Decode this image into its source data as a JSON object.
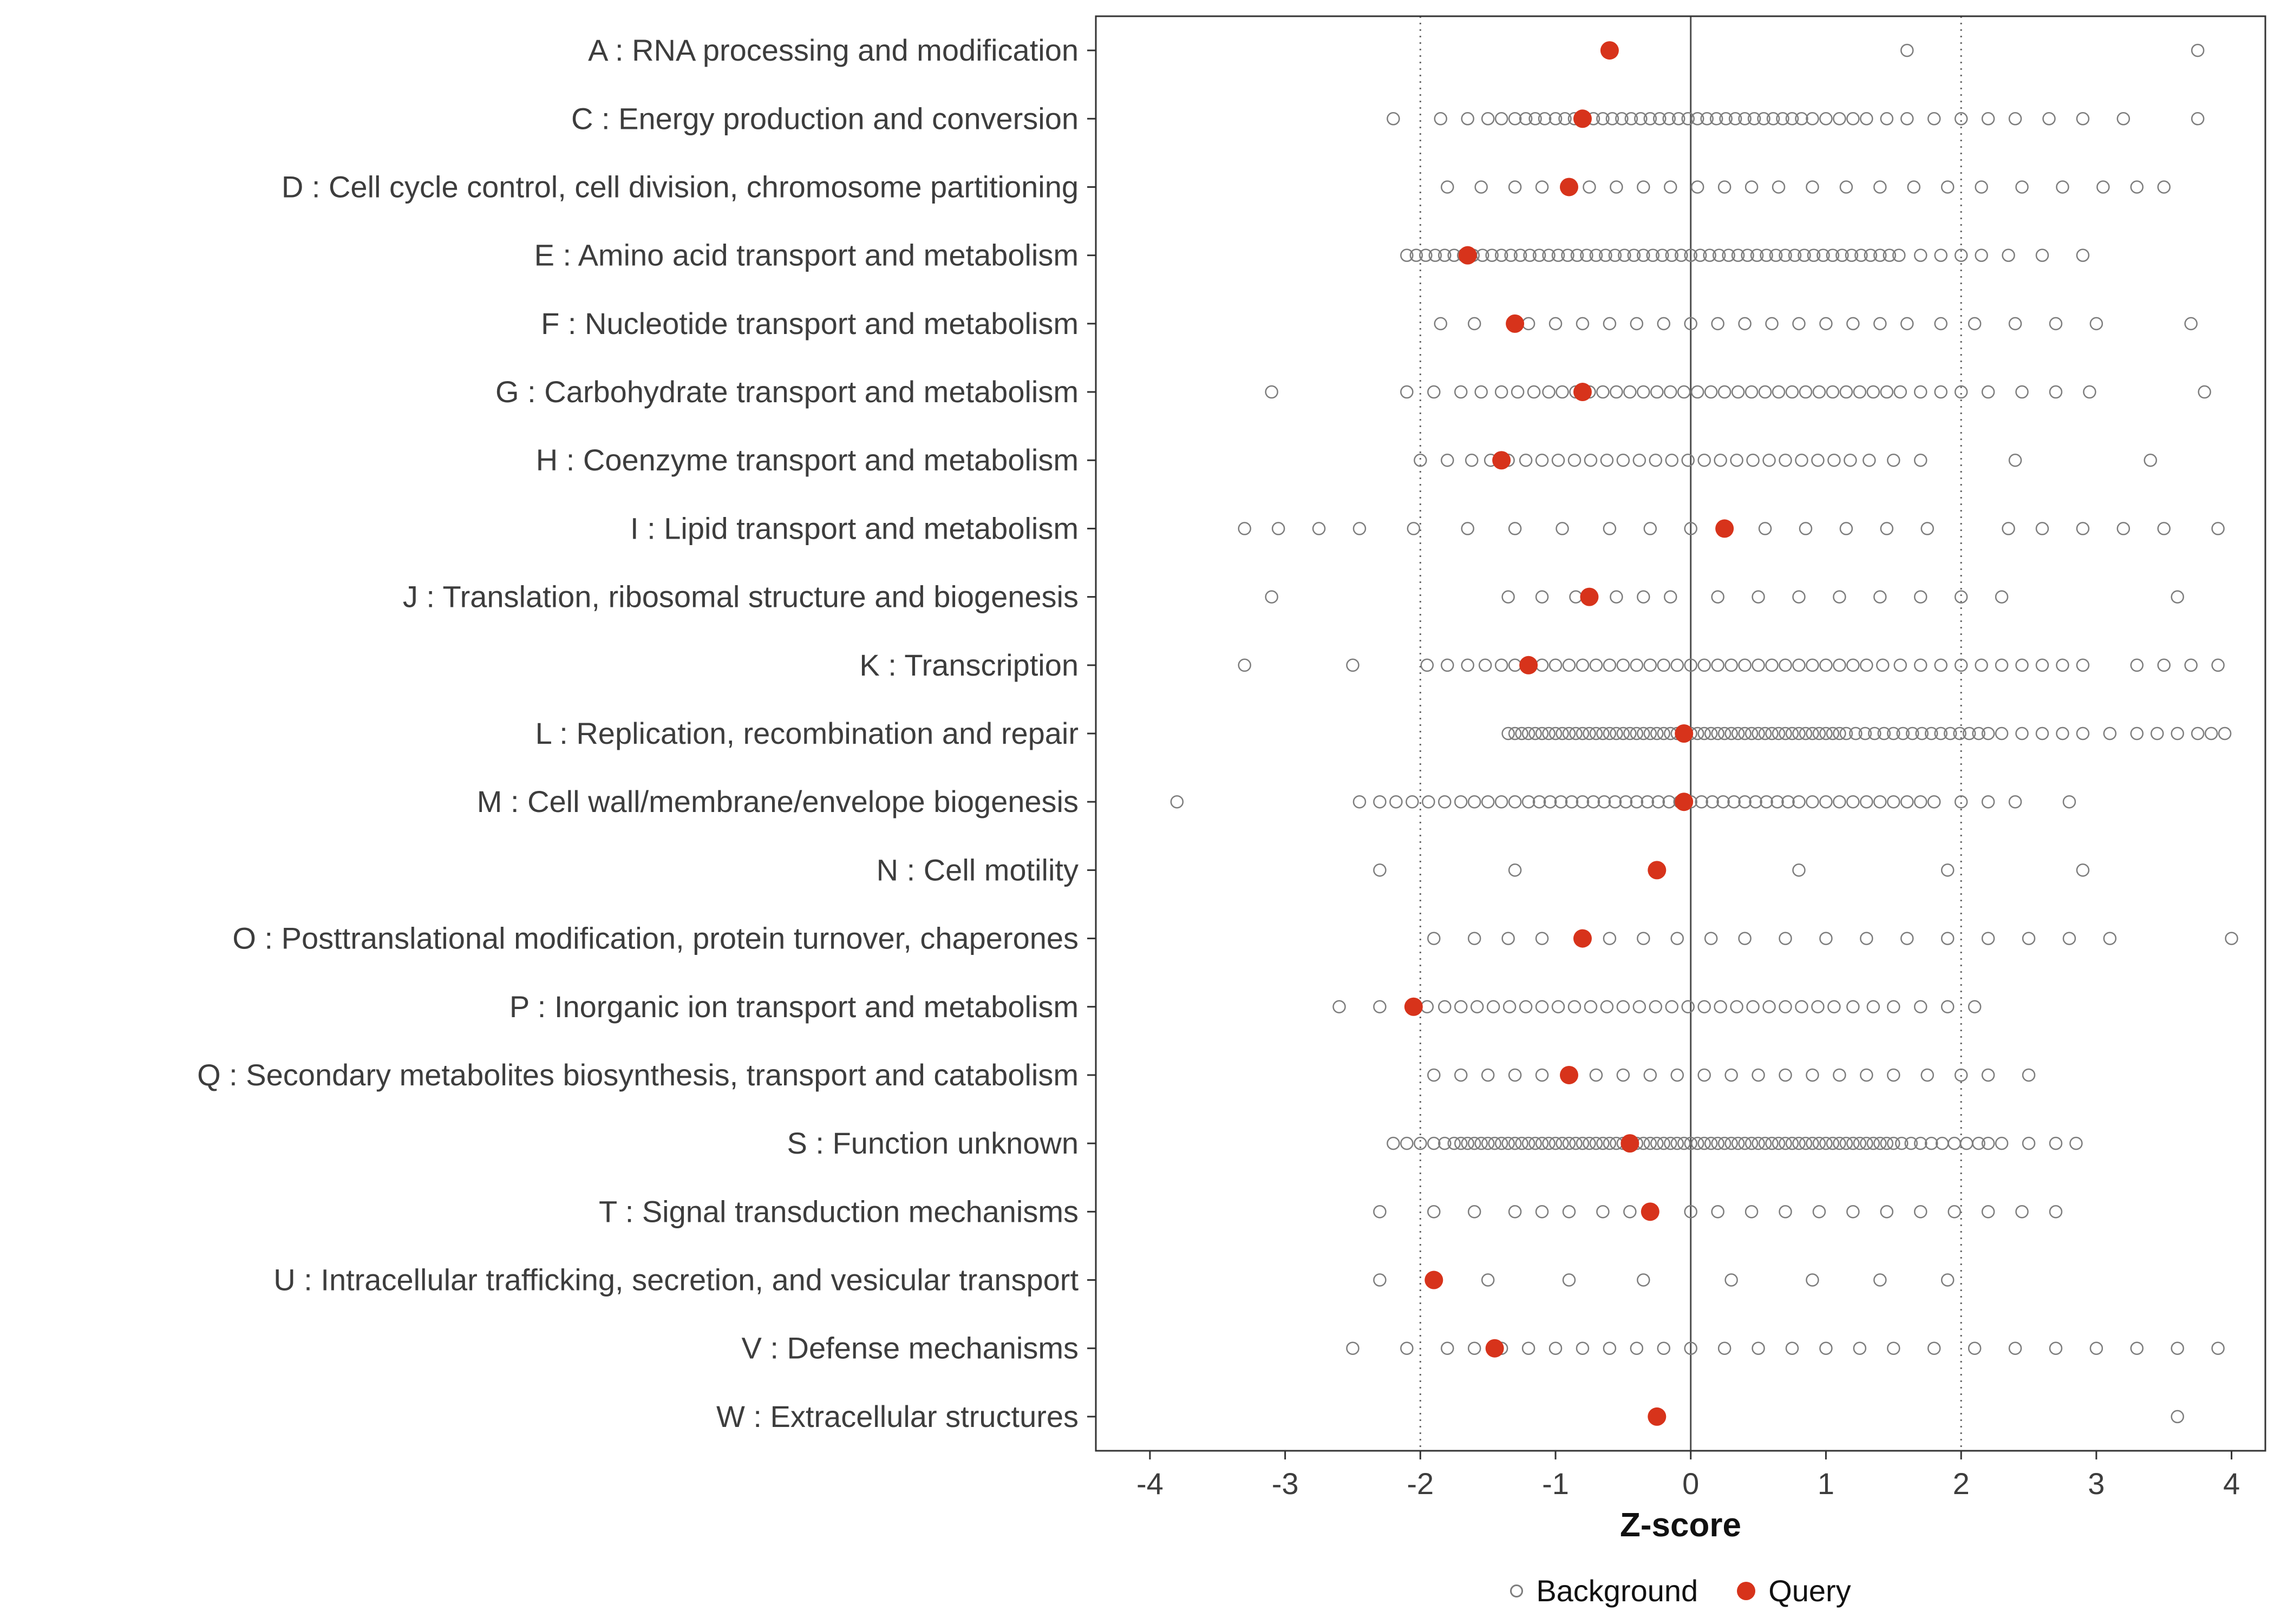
{
  "chart_data": {
    "type": "scatter",
    "variant": "horizontal-strip-dot-plot",
    "title": "",
    "xlabel": "Z-score",
    "ylabel": "",
    "xlim": [
      -4.4,
      4.25
    ],
    "x_ticks": [
      -4,
      -3,
      -2,
      -1,
      0,
      1,
      2,
      3,
      4
    ],
    "reference_lines": {
      "solid": [
        0
      ],
      "dotted": [
        -2,
        2
      ]
    },
    "grid": false,
    "colors": {
      "background_point": "#7d7d7d",
      "query_point": "#d7331b",
      "panel_border": "#333333",
      "axis_text": "#3d3d3d",
      "ref_line_solid": "#4d4d4d",
      "ref_line_dotted": "#666666"
    },
    "legend": {
      "position": "bottom",
      "items": [
        {
          "label": "Background",
          "marker": "open-circle"
        },
        {
          "label": "Query",
          "marker": "filled-circle"
        }
      ]
    },
    "categories": [
      {
        "label": "A : RNA processing and modification",
        "query": -0.6,
        "background": [
          1.6,
          3.75
        ]
      },
      {
        "label": "C : Energy production and conversion",
        "query": -0.8,
        "background": [
          -2.2,
          -1.85,
          -1.65,
          -1.5,
          -1.4,
          -1.3,
          -1.22,
          -1.15,
          -1.08,
          -1.0,
          -0.93,
          -0.86,
          -0.79,
          -0.72,
          -0.65,
          -0.58,
          -0.51,
          -0.44,
          -0.37,
          -0.3,
          -0.23,
          -0.16,
          -0.09,
          -0.02,
          0.05,
          0.12,
          0.19,
          0.26,
          0.33,
          0.4,
          0.47,
          0.54,
          0.61,
          0.68,
          0.75,
          0.82,
          0.9,
          1.0,
          1.1,
          1.2,
          1.3,
          1.45,
          1.6,
          1.8,
          2.0,
          2.2,
          2.4,
          2.65,
          2.9,
          3.2,
          3.75
        ]
      },
      {
        "label": "D : Cell cycle control, cell division, chromosome partitioning",
        "query": -0.9,
        "background": [
          -1.8,
          -1.55,
          -1.3,
          -1.1,
          -0.75,
          -0.55,
          -0.35,
          -0.15,
          0.05,
          0.25,
          0.45,
          0.65,
          0.9,
          1.15,
          1.4,
          1.65,
          1.9,
          2.15,
          2.45,
          2.75,
          3.05,
          3.3,
          3.5
        ]
      },
      {
        "label": "E : Amino acid transport and metabolism",
        "query": -1.65,
        "background": [
          -2.1,
          -2.03,
          -1.96,
          -1.89,
          -1.82,
          -1.75,
          -1.68,
          -1.61,
          -1.54,
          -1.47,
          -1.4,
          -1.33,
          -1.26,
          -1.19,
          -1.12,
          -1.05,
          -0.98,
          -0.91,
          -0.84,
          -0.77,
          -0.7,
          -0.63,
          -0.56,
          -0.49,
          -0.42,
          -0.35,
          -0.28,
          -0.21,
          -0.14,
          -0.07,
          0.0,
          0.07,
          0.14,
          0.21,
          0.28,
          0.35,
          0.42,
          0.49,
          0.56,
          0.63,
          0.7,
          0.77,
          0.84,
          0.91,
          0.98,
          1.05,
          1.12,
          1.19,
          1.26,
          1.33,
          1.4,
          1.47,
          1.54,
          1.7,
          1.85,
          2.0,
          2.15,
          2.35,
          2.6,
          2.9
        ]
      },
      {
        "label": "F : Nucleotide transport and metabolism",
        "query": -1.3,
        "background": [
          -1.85,
          -1.6,
          -1.2,
          -1.0,
          -0.8,
          -0.6,
          -0.4,
          -0.2,
          0.0,
          0.2,
          0.4,
          0.6,
          0.8,
          1.0,
          1.2,
          1.4,
          1.6,
          1.85,
          2.1,
          2.4,
          2.7,
          3.0,
          3.7
        ]
      },
      {
        "label": "G : Carbohydrate transport and metabolism",
        "query": -0.8,
        "background": [
          -3.1,
          -2.1,
          -1.9,
          -1.7,
          -1.55,
          -1.4,
          -1.28,
          -1.16,
          -1.05,
          -0.95,
          -0.85,
          -0.75,
          -0.65,
          -0.55,
          -0.45,
          -0.35,
          -0.25,
          -0.15,
          -0.05,
          0.05,
          0.15,
          0.25,
          0.35,
          0.45,
          0.55,
          0.65,
          0.75,
          0.85,
          0.95,
          1.05,
          1.15,
          1.25,
          1.35,
          1.45,
          1.55,
          1.7,
          1.85,
          2.0,
          2.2,
          2.45,
          2.7,
          2.95,
          3.8
        ]
      },
      {
        "label": "H : Coenzyme transport and metabolism",
        "query": -1.4,
        "background": [
          -2.0,
          -1.8,
          -1.62,
          -1.48,
          -1.35,
          -1.22,
          -1.1,
          -0.98,
          -0.86,
          -0.74,
          -0.62,
          -0.5,
          -0.38,
          -0.26,
          -0.14,
          -0.02,
          0.1,
          0.22,
          0.34,
          0.46,
          0.58,
          0.7,
          0.82,
          0.94,
          1.06,
          1.18,
          1.32,
          1.5,
          1.7,
          2.4,
          3.4
        ]
      },
      {
        "label": "I : Lipid transport and metabolism",
        "query": 0.25,
        "background": [
          -3.3,
          -3.05,
          -2.75,
          -2.45,
          -2.05,
          -1.65,
          -1.3,
          -0.95,
          -0.6,
          -0.3,
          0.0,
          0.55,
          0.85,
          1.15,
          1.45,
          1.75,
          2.35,
          2.6,
          2.9,
          3.2,
          3.5,
          3.9
        ]
      },
      {
        "label": "J : Translation, ribosomal structure and biogenesis",
        "query": -0.75,
        "background": [
          -3.1,
          -1.35,
          -1.1,
          -0.85,
          -0.55,
          -0.35,
          -0.15,
          0.2,
          0.5,
          0.8,
          1.1,
          1.4,
          1.7,
          2.0,
          2.3,
          3.6
        ]
      },
      {
        "label": "K : Transcription",
        "query": -1.2,
        "background": [
          -3.3,
          -2.5,
          -1.95,
          -1.8,
          -1.65,
          -1.52,
          -1.4,
          -1.3,
          -1.2,
          -1.1,
          -1.0,
          -0.9,
          -0.8,
          -0.7,
          -0.6,
          -0.5,
          -0.4,
          -0.3,
          -0.2,
          -0.1,
          0.0,
          0.1,
          0.2,
          0.3,
          0.4,
          0.5,
          0.6,
          0.7,
          0.8,
          0.9,
          1.0,
          1.1,
          1.2,
          1.3,
          1.42,
          1.55,
          1.7,
          1.85,
          2.0,
          2.15,
          2.3,
          2.45,
          2.6,
          2.75,
          2.9,
          3.3,
          3.5,
          3.7,
          3.9
        ]
      },
      {
        "label": "L : Replication, recombination and repair",
        "query": -0.05,
        "background": [
          -1.35,
          -1.3,
          -1.25,
          -1.2,
          -1.15,
          -1.1,
          -1.05,
          -1.0,
          -0.95,
          -0.9,
          -0.85,
          -0.8,
          -0.75,
          -0.7,
          -0.65,
          -0.6,
          -0.55,
          -0.5,
          -0.45,
          -0.4,
          -0.35,
          -0.3,
          -0.25,
          -0.2,
          -0.15,
          -0.1,
          -0.05,
          0.0,
          0.05,
          0.1,
          0.15,
          0.2,
          0.25,
          0.3,
          0.35,
          0.4,
          0.45,
          0.5,
          0.55,
          0.6,
          0.65,
          0.7,
          0.75,
          0.8,
          0.85,
          0.9,
          0.95,
          1.0,
          1.05,
          1.1,
          1.15,
          1.22,
          1.29,
          1.36,
          1.43,
          1.5,
          1.57,
          1.64,
          1.71,
          1.78,
          1.85,
          1.92,
          1.99,
          2.06,
          2.13,
          2.2,
          2.3,
          2.45,
          2.6,
          2.75,
          2.9,
          3.1,
          3.3,
          3.45,
          3.6,
          3.75,
          3.85,
          3.95
        ]
      },
      {
        "label": "M : Cell wall/membrane/envelope biogenesis",
        "query": -0.05,
        "background": [
          -3.8,
          -2.45,
          -2.3,
          -2.18,
          -2.06,
          -1.94,
          -1.82,
          -1.7,
          -1.6,
          -1.5,
          -1.4,
          -1.3,
          -1.2,
          -1.12,
          -1.04,
          -0.96,
          -0.88,
          -0.8,
          -0.72,
          -0.64,
          -0.56,
          -0.48,
          -0.4,
          -0.32,
          -0.24,
          -0.16,
          -0.08,
          0.0,
          0.08,
          0.16,
          0.24,
          0.32,
          0.4,
          0.48,
          0.56,
          0.64,
          0.72,
          0.8,
          0.9,
          1.0,
          1.1,
          1.2,
          1.3,
          1.4,
          1.5,
          1.6,
          1.7,
          1.8,
          2.0,
          2.2,
          2.4,
          2.8
        ]
      },
      {
        "label": "N : Cell motility",
        "query": -0.25,
        "background": [
          -2.3,
          -1.3,
          0.8,
          1.9,
          2.9
        ]
      },
      {
        "label": "O : Posttranslational modification, protein turnover, chaperones",
        "query": -0.8,
        "background": [
          -1.9,
          -1.6,
          -1.35,
          -1.1,
          -0.6,
          -0.35,
          -0.1,
          0.15,
          0.4,
          0.7,
          1.0,
          1.3,
          1.6,
          1.9,
          2.2,
          2.5,
          2.8,
          3.1,
          4.0
        ]
      },
      {
        "label": "P : Inorganic ion transport and metabolism",
        "query": -2.05,
        "background": [
          -2.6,
          -2.3,
          -1.95,
          -1.82,
          -1.7,
          -1.58,
          -1.46,
          -1.34,
          -1.22,
          -1.1,
          -0.98,
          -0.86,
          -0.74,
          -0.62,
          -0.5,
          -0.38,
          -0.26,
          -0.14,
          -0.02,
          0.1,
          0.22,
          0.34,
          0.46,
          0.58,
          0.7,
          0.82,
          0.94,
          1.06,
          1.2,
          1.35,
          1.5,
          1.7,
          1.9,
          2.1
        ]
      },
      {
        "label": "Q : Secondary metabolites biosynthesis, transport and catabolism",
        "query": -0.9,
        "background": [
          -1.9,
          -1.7,
          -1.5,
          -1.3,
          -1.1,
          -0.7,
          -0.5,
          -0.3,
          -0.1,
          0.1,
          0.3,
          0.5,
          0.7,
          0.9,
          1.1,
          1.3,
          1.5,
          1.75,
          2.0,
          2.2,
          2.5
        ]
      },
      {
        "label": "S : Function unknown",
        "query": -0.45,
        "background": [
          -2.2,
          -2.1,
          -2.0,
          -1.9,
          -1.82,
          -1.75,
          -1.7,
          -1.65,
          -1.6,
          -1.55,
          -1.5,
          -1.45,
          -1.4,
          -1.35,
          -1.3,
          -1.25,
          -1.2,
          -1.15,
          -1.1,
          -1.05,
          -1.0,
          -0.95,
          -0.9,
          -0.85,
          -0.8,
          -0.75,
          -0.7,
          -0.65,
          -0.6,
          -0.55,
          -0.5,
          -0.45,
          -0.4,
          -0.35,
          -0.3,
          -0.25,
          -0.2,
          -0.15,
          -0.1,
          -0.05,
          0.0,
          0.05,
          0.1,
          0.15,
          0.2,
          0.25,
          0.3,
          0.35,
          0.4,
          0.45,
          0.5,
          0.55,
          0.6,
          0.65,
          0.7,
          0.75,
          0.8,
          0.85,
          0.9,
          0.95,
          1.0,
          1.05,
          1.1,
          1.15,
          1.2,
          1.25,
          1.3,
          1.35,
          1.4,
          1.45,
          1.5,
          1.56,
          1.63,
          1.7,
          1.78,
          1.86,
          1.95,
          2.04,
          2.13,
          2.2,
          2.3,
          2.5,
          2.7,
          2.85
        ]
      },
      {
        "label": "T : Signal transduction mechanisms",
        "query": -0.3,
        "background": [
          -2.3,
          -1.9,
          -1.6,
          -1.3,
          -1.1,
          -0.9,
          -0.65,
          -0.45,
          0.0,
          0.2,
          0.45,
          0.7,
          0.95,
          1.2,
          1.45,
          1.7,
          1.95,
          2.2,
          2.45,
          2.7
        ]
      },
      {
        "label": "U : Intracellular trafficking, secretion, and vesicular transport",
        "query": -1.9,
        "background": [
          -2.3,
          -1.5,
          -0.9,
          -0.35,
          0.3,
          0.9,
          1.4,
          1.9
        ]
      },
      {
        "label": "V : Defense mechanisms",
        "query": -1.45,
        "background": [
          -2.5,
          -2.1,
          -1.8,
          -1.6,
          -1.4,
          -1.2,
          -1.0,
          -0.8,
          -0.6,
          -0.4,
          -0.2,
          0.0,
          0.25,
          0.5,
          0.75,
          1.0,
          1.25,
          1.5,
          1.8,
          2.1,
          2.4,
          2.7,
          3.0,
          3.3,
          3.6,
          3.9
        ]
      },
      {
        "label": "W : Extracellular structures",
        "query": -0.25,
        "background": [
          3.6
        ]
      }
    ]
  }
}
